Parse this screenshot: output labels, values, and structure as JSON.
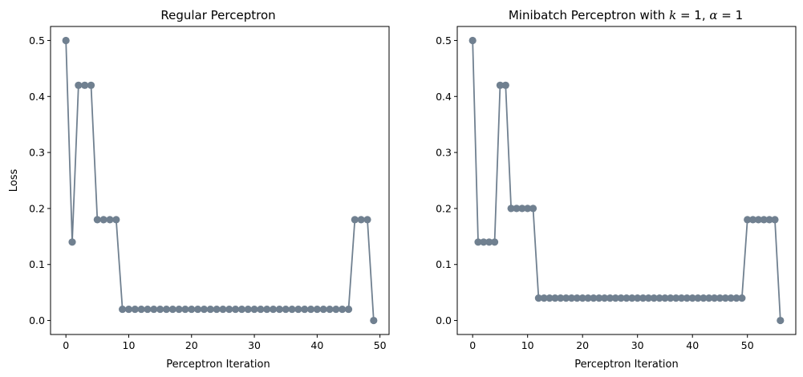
{
  "chart_data": [
    {
      "type": "line",
      "title": "Regular Perceptron",
      "xlabel": "Perceptron Iteration",
      "ylabel": "Loss",
      "xlim": [
        -2.45,
        51.45
      ],
      "ylim": [
        -0.025,
        0.525
      ],
      "xticks": [
        0,
        10,
        20,
        30,
        40,
        50
      ],
      "yticks": [
        0.0,
        0.1,
        0.2,
        0.3,
        0.4,
        0.5
      ],
      "ytick_labels": [
        "0.0",
        "0.1",
        "0.2",
        "0.3",
        "0.4",
        "0.5"
      ],
      "grid": false,
      "color": "#708090",
      "x": [
        0,
        1,
        2,
        3,
        4,
        5,
        6,
        7,
        8,
        9,
        10,
        11,
        12,
        13,
        14,
        15,
        16,
        17,
        18,
        19,
        20,
        21,
        22,
        23,
        24,
        25,
        26,
        27,
        28,
        29,
        30,
        31,
        32,
        33,
        34,
        35,
        36,
        37,
        38,
        39,
        40,
        41,
        42,
        43,
        44,
        45,
        46,
        47,
        48,
        49
      ],
      "y": [
        0.5,
        0.14,
        0.42,
        0.42,
        0.42,
        0.18,
        0.18,
        0.18,
        0.18,
        0.02,
        0.02,
        0.02,
        0.02,
        0.02,
        0.02,
        0.02,
        0.02,
        0.02,
        0.02,
        0.02,
        0.02,
        0.02,
        0.02,
        0.02,
        0.02,
        0.02,
        0.02,
        0.02,
        0.02,
        0.02,
        0.02,
        0.02,
        0.02,
        0.02,
        0.02,
        0.02,
        0.02,
        0.02,
        0.02,
        0.02,
        0.02,
        0.02,
        0.02,
        0.02,
        0.02,
        0.02,
        0.18,
        0.18,
        0.18,
        0.0
      ]
    },
    {
      "type": "line",
      "title": "Minibatch Perceptron with k = 1, α = 1",
      "title_parts": {
        "prefix": "Minibatch Perceptron with ",
        "k": "k",
        "k_eq": " = 1, ",
        "alpha": "α",
        "alpha_eq": " = 1"
      },
      "xlabel": "Perceptron Iteration",
      "ylabel": "",
      "xlim": [
        -2.8,
        58.8
      ],
      "ylim": [
        -0.025,
        0.525
      ],
      "xticks": [
        0,
        10,
        20,
        30,
        40,
        50
      ],
      "yticks": [
        0.0,
        0.1,
        0.2,
        0.3,
        0.4,
        0.5
      ],
      "ytick_labels": [
        "0.0",
        "0.1",
        "0.2",
        "0.3",
        "0.4",
        "0.5"
      ],
      "grid": false,
      "color": "#708090",
      "x": [
        0,
        1,
        2,
        3,
        4,
        5,
        6,
        7,
        8,
        9,
        10,
        11,
        12,
        13,
        14,
        15,
        16,
        17,
        18,
        19,
        20,
        21,
        22,
        23,
        24,
        25,
        26,
        27,
        28,
        29,
        30,
        31,
        32,
        33,
        34,
        35,
        36,
        37,
        38,
        39,
        40,
        41,
        42,
        43,
        44,
        45,
        46,
        47,
        48,
        49,
        50,
        51,
        52,
        53,
        54,
        55,
        56
      ],
      "y": [
        0.5,
        0.14,
        0.14,
        0.14,
        0.14,
        0.42,
        0.42,
        0.2,
        0.2,
        0.2,
        0.2,
        0.2,
        0.04,
        0.04,
        0.04,
        0.04,
        0.04,
        0.04,
        0.04,
        0.04,
        0.04,
        0.04,
        0.04,
        0.04,
        0.04,
        0.04,
        0.04,
        0.04,
        0.04,
        0.04,
        0.04,
        0.04,
        0.04,
        0.04,
        0.04,
        0.04,
        0.04,
        0.04,
        0.04,
        0.04,
        0.04,
        0.04,
        0.04,
        0.04,
        0.04,
        0.04,
        0.04,
        0.04,
        0.04,
        0.04,
        0.18,
        0.18,
        0.18,
        0.18,
        0.18,
        0.18,
        0.0
      ]
    }
  ]
}
